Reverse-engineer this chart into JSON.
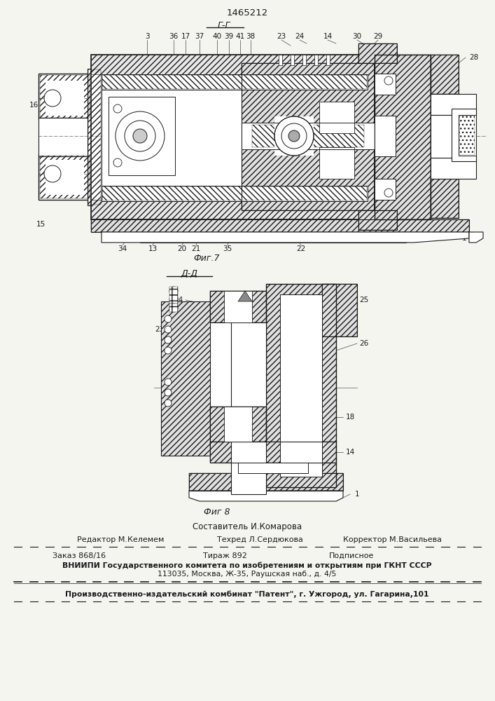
{
  "patent_number": "1465212",
  "fig7_label": "Г-Г",
  "fig8_label": "Д-Д",
  "fig7_caption": "Фиг.7",
  "fig8_caption": "Фиг 8",
  "composer": "Составитель И.Комарова",
  "editor": "Редактор М.Келемем",
  "techred": "Техред Л.Сердюкова",
  "corrector": "Корректор М.Васильева",
  "order": "Заказ 868/16",
  "tirazh": "Тираж 892",
  "podpisnoe": "Подписное",
  "institute_line1": "ВНИИПИ Государственного комитета по изобретениям и открытиям при ГКНТ СССР",
  "institute_line2": "113035, Москва, Ж-35, Раушская наб., д. 4/5",
  "factory_line": "Производственно-издательский комбинат \"Патент\", г. Ужгород, ул. Гагарина,101",
  "bg_color": "#f5f5f0",
  "line_color": "#1a1a1a"
}
